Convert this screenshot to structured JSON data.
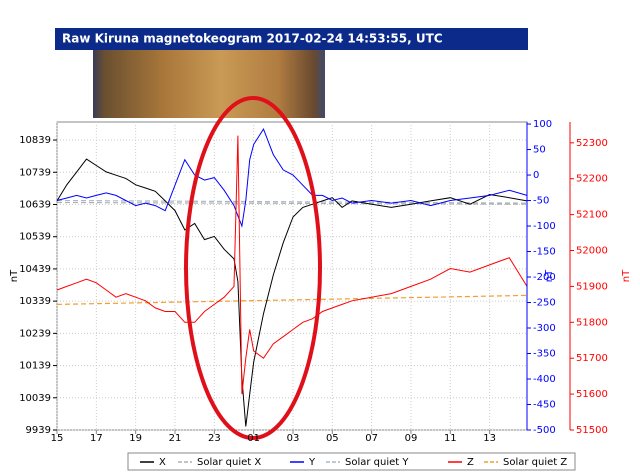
{
  "chart_data": {
    "type": "line",
    "title": "Raw Kiruna magnetokeogram 2017-02-24 14:53:55, UTC",
    "x": [
      15,
      15.5,
      16,
      16.5,
      17,
      17.5,
      18,
      18.5,
      19,
      19.5,
      20,
      20.5,
      21,
      21.5,
      22,
      22.5,
      23,
      23.5,
      24,
      24.2,
      24.4,
      24.6,
      24.8,
      25,
      25.5,
      26,
      26.5,
      27,
      27.5,
      28,
      28.5,
      29,
      29.5,
      30,
      31,
      32,
      33,
      34,
      35,
      36,
      37,
      38,
      38.9
    ],
    "series": [
      {
        "name": "X",
        "color": "#000000",
        "dash": false,
        "axis": "y",
        "values": [
          10650,
          10700,
          10740,
          10780,
          10760,
          10740,
          10730,
          10720,
          10700,
          10690,
          10680,
          10650,
          10620,
          10560,
          10580,
          10530,
          10540,
          10500,
          10470,
          10400,
          10100,
          9950,
          10050,
          10150,
          10300,
          10420,
          10520,
          10600,
          10630,
          10640,
          10650,
          10660,
          10630,
          10650,
          10640,
          10630,
          10640,
          10650,
          10660,
          10640,
          10670,
          10660,
          10650
        ]
      },
      {
        "name": "Solar quiet X",
        "color": "#b0b0b0",
        "dash": true,
        "axis": "y",
        "x": [
          15,
          38.9
        ],
        "values": [
          10645,
          10640
        ]
      },
      {
        "name": "Y",
        "color": "#0000ff",
        "dash": false,
        "axis": "y2",
        "values": [
          -50,
          -45,
          -40,
          -45,
          -40,
          -35,
          -40,
          -50,
          -60,
          -55,
          -60,
          -70,
          -20,
          30,
          0,
          -10,
          -5,
          -30,
          -60,
          -80,
          -100,
          -50,
          30,
          60,
          90,
          40,
          10,
          0,
          -20,
          -40,
          -40,
          -50,
          -45,
          -55,
          -50,
          -55,
          -50,
          -60,
          -50,
          -45,
          -40,
          -30,
          -40
        ]
      },
      {
        "name": "Solar quiet Y",
        "color": "#a8b8c8",
        "dash": true,
        "axis": "y2",
        "x": [
          15,
          38.9
        ],
        "values": [
          -50,
          -55
        ]
      },
      {
        "name": "Z",
        "color": "#ff0000",
        "dash": false,
        "axis": "y3",
        "values": [
          51890,
          51900,
          51910,
          51920,
          51910,
          51890,
          51870,
          51880,
          51870,
          51860,
          51840,
          51830,
          51830,
          51800,
          51800,
          51830,
          51850,
          51870,
          51900,
          52320,
          51600,
          51700,
          51780,
          51720,
          51700,
          51740,
          51760,
          51780,
          51800,
          51810,
          51830,
          51840,
          51850,
          51860,
          51870,
          51880,
          51900,
          51920,
          51950,
          51940,
          51960,
          51980,
          51900
        ]
      },
      {
        "name": "Solar quiet Z",
        "color": "#f0a030",
        "dash": true,
        "axis": "y3",
        "x": [
          15,
          38.9
        ],
        "values": [
          51850,
          51875
        ]
      }
    ],
    "xlim": [
      15,
      38.9
    ],
    "xticks": [
      15,
      17,
      19,
      21,
      23,
      {
        "value": 25,
        "label": "01"
      },
      {
        "value": 27,
        "label": "03"
      },
      {
        "value": 29,
        "label": "05"
      },
      {
        "value": 31,
        "label": "07"
      },
      {
        "value": 33,
        "label": "09"
      },
      {
        "value": 35,
        "label": "11"
      },
      {
        "value": 37,
        "label": "13"
      }
    ],
    "ylim": [
      9939,
      10895
    ],
    "yticks": [
      9939,
      10039,
      10139,
      10239,
      10339,
      10439,
      10539,
      10639,
      10739,
      10839
    ],
    "ylabel": "nT",
    "y2lim": [
      -500,
      104
    ],
    "y2ticks": [
      -500,
      -450,
      -400,
      -350,
      -300,
      -250,
      -200,
      -150,
      -100,
      -50,
      0,
      50,
      100
    ],
    "y2label": "nT",
    "y3lim": [
      51500,
      52358
    ],
    "y3ticks": [
      51500,
      51600,
      51700,
      51800,
      51900,
      52000,
      52100,
      52200,
      52300
    ],
    "y3label": "nT",
    "grid": true
  }
}
